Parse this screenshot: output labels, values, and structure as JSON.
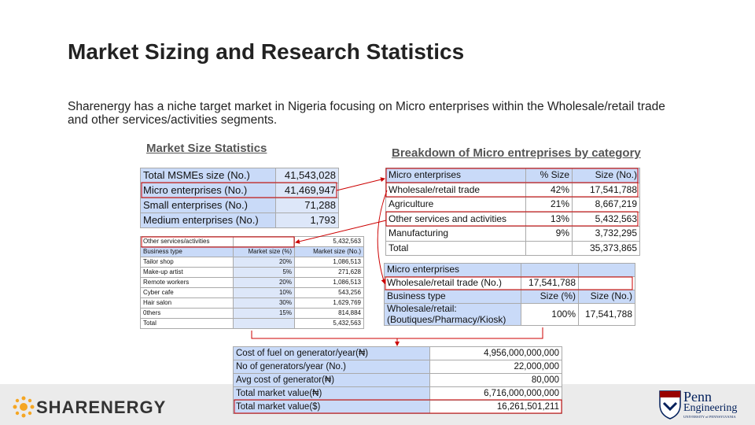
{
  "title": "Market Sizing and Research Statistics",
  "intro": "Sharenergy has a niche target market in Nigeria focusing on Micro enterprises within the Wholesale/retail trade and other services/activities segments.",
  "market_size": {
    "heading": "Market Size Statistics",
    "rows": [
      [
        "Total MSMEs size (No.)",
        "41,543,028"
      ],
      [
        "Micro enterprises (No.)",
        "41,469,947"
      ],
      [
        "Small enterprises (No.)",
        "71,288"
      ],
      [
        "Medium enterprises (No.)",
        "1,793"
      ]
    ]
  },
  "breakdown": {
    "heading": "Breakdown of Micro entreprises by category",
    "rows": [
      [
        "Micro enterprises",
        "% Size",
        "Size (No.)"
      ],
      [
        "Wholesale/retail trade",
        "42%",
        "17,541,788"
      ],
      [
        "Agriculture",
        "21%",
        "8,667,219"
      ],
      [
        "Other services and activities",
        "13%",
        "5,432,563"
      ],
      [
        "Manufacturing",
        "9%",
        "3,732,295"
      ],
      [
        "Total",
        null,
        "35,373,865"
      ]
    ]
  },
  "other_services": {
    "rows": [
      [
        "Other services/activities",
        null,
        "5,432,563"
      ],
      [
        "Business type",
        "Market size (%)",
        "Market size (No.)"
      ],
      [
        "Tailor shop",
        "20%",
        "1,086,513"
      ],
      [
        "Make-up artist",
        "5%",
        "271,628"
      ],
      [
        "Remote workers",
        "20%",
        "1,086,513"
      ],
      [
        "Cyber cafe",
        "10%",
        "543,256"
      ],
      [
        "Hair salon",
        "30%",
        "1,629,769"
      ],
      [
        "0thers",
        "15%",
        "814,884"
      ],
      [
        "Total",
        null,
        "5,432,563"
      ]
    ]
  },
  "wholesale": {
    "rows": [
      [
        "Micro enterprises",
        null,
        null
      ],
      [
        "Wholesale/retail trade (No.)",
        "17,541,788",
        null
      ],
      [
        "Business type",
        "Size (%)",
        "Size (No.)"
      ],
      [
        [
          "Wholesale/retail:",
          "(Boutiques/Pharmacy/Kiosk)"
        ],
        "100%",
        "17,541,788"
      ]
    ]
  },
  "market_value": {
    "rows": [
      [
        "Cost of fuel on generator/year(₦)",
        "4,956,000,000,000"
      ],
      [
        "No of generators/year (No.)",
        "22,000,000"
      ],
      [
        "Avg cost of generator(₦)",
        "80,000"
      ],
      [
        "Total market value(₦)",
        "6,716,000,000,000"
      ],
      [
        "Total market value($)",
        "16,261,501,211"
      ]
    ]
  },
  "footer": {
    "brand": "SHARENERGY",
    "partner": "Penn",
    "partner_sub": "Engineering",
    "partner_univ": "UNIVERSITY of PENNSYLVANIA"
  }
}
